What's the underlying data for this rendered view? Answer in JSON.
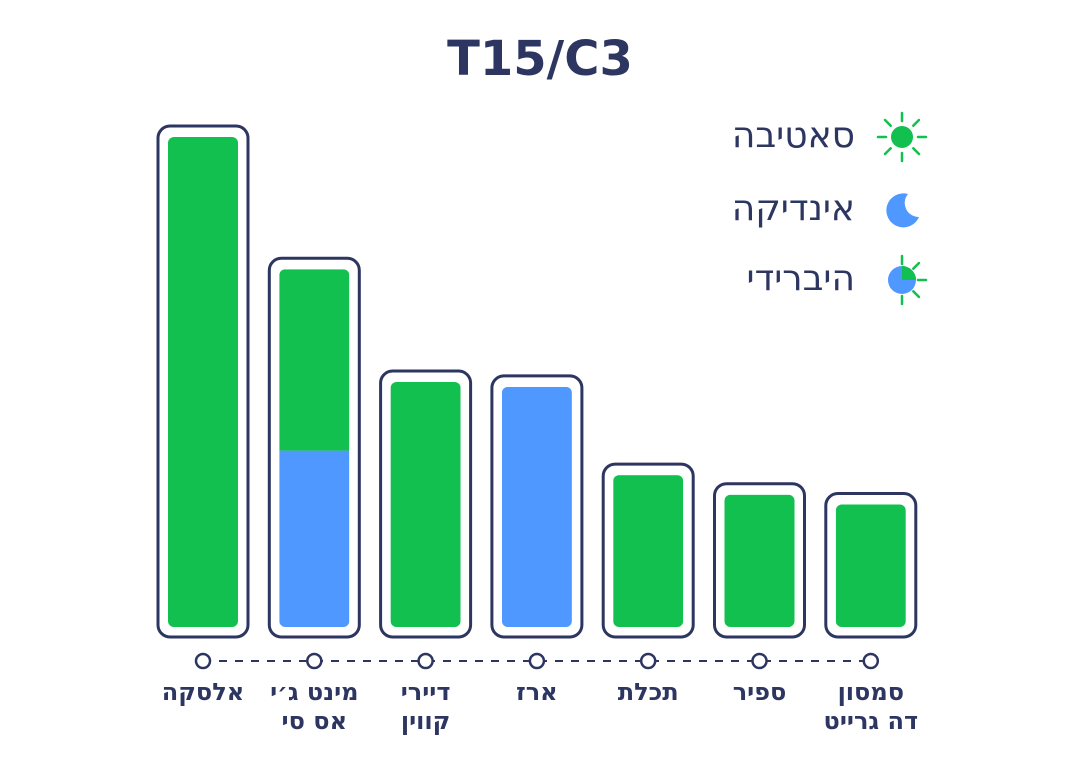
{
  "chart_data": {
    "type": "bar",
    "title": "T15/C3",
    "categories": [
      [
        "אלסקה"
      ],
      [
        "מינט ג׳י",
        "אס סי"
      ],
      [
        "דיירי",
        "קווין"
      ],
      [
        "ארז"
      ],
      [
        "תכלת"
      ],
      [
        "ספיר"
      ],
      [
        "סמסון",
        "דה גרייט"
      ]
    ],
    "series": [
      {
        "name": "אינדיקה",
        "color": "#4f98ff",
        "values": [
          null,
          36,
          null,
          49,
          null,
          null,
          null
        ]
      },
      {
        "name": "סאטיבה",
        "color": "#12c04f",
        "values": [
          100,
          37,
          50,
          null,
          31,
          27,
          25
        ]
      },
      {
        "name": "היברידי",
        "color": "#4f98ff",
        "values": [
          null,
          null,
          null,
          null,
          null,
          null,
          null
        ]
      }
    ],
    "stacked": true,
    "ylim": [
      0,
      100
    ]
  }
}
